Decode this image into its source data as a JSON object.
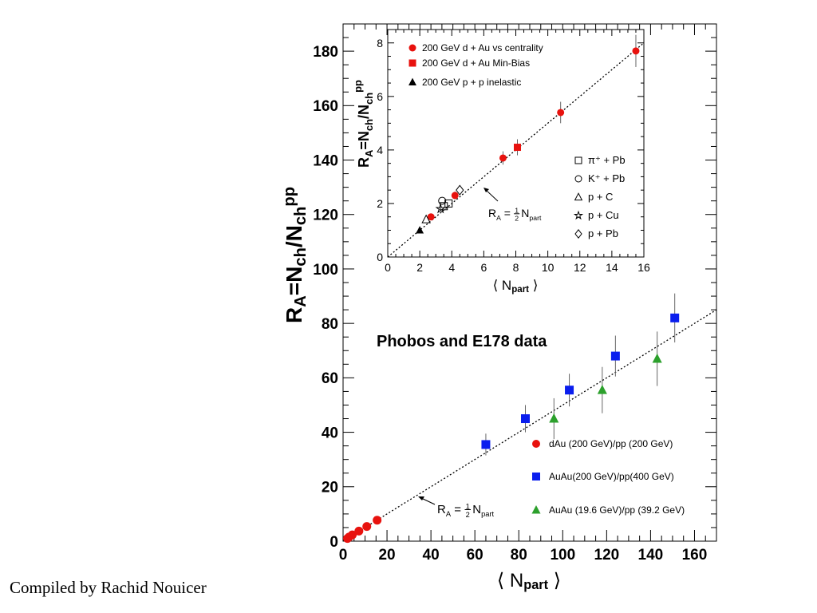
{
  "credit": "Compiled by Rachid Nouicer",
  "colors": {
    "red": "#e8120e",
    "blue": "#0a1eee",
    "green": "#2ca02c",
    "black": "#000000"
  },
  "chart_data": [
    {
      "id": "main",
      "type": "scatter",
      "title": "Phobos and E178 data",
      "ylabel": "R_A=N_ch/N_ch^pp",
      "xlabel": "⟨ N_part ⟩",
      "xlim": [
        0,
        170
      ],
      "ylim": [
        0,
        190
      ],
      "xticks": [
        0,
        20,
        40,
        60,
        80,
        100,
        120,
        140,
        160
      ],
      "yticks": [
        0,
        20,
        40,
        60,
        80,
        100,
        120,
        140,
        160,
        180
      ],
      "grid": false,
      "legend": "bottom-right",
      "fit_line": {
        "label": "R_A = 1/2 N_part",
        "slope": 0.5
      },
      "series": [
        {
          "name": "dAu (200 GeV)/pp (200 GeV)",
          "marker": "circle",
          "color": "#e8120e",
          "points": [
            {
              "x": 2.0,
              "y": 1.0,
              "err": 0
            },
            {
              "x": 2.7,
              "y": 1.5,
              "err": 0
            },
            {
              "x": 4.2,
              "y": 2.3,
              "err": 0
            },
            {
              "x": 7.2,
              "y": 3.7,
              "err": 0
            },
            {
              "x": 10.8,
              "y": 5.4,
              "err": 0
            },
            {
              "x": 15.5,
              "y": 7.7,
              "err": 0
            }
          ]
        },
        {
          "name": "AuAu(200 GeV)/pp(400 GeV)",
          "marker": "square",
          "color": "#0a1eee",
          "points": [
            {
              "x": 65,
              "y": 35.5,
              "err": 4
            },
            {
              "x": 83,
              "y": 45,
              "err": 5
            },
            {
              "x": 103,
              "y": 55.5,
              "err": 6
            },
            {
              "x": 124,
              "y": 68,
              "err": 7.5
            },
            {
              "x": 151,
              "y": 82,
              "err": 9
            }
          ]
        },
        {
          "name": "AuAu (19.6 GeV)/pp (39.2 GeV)",
          "marker": "triangle",
          "color": "#2ca02c",
          "points": [
            {
              "x": 96,
              "y": 45,
              "err": 7.5
            },
            {
              "x": 118,
              "y": 55.5,
              "err": 8.5
            },
            {
              "x": 143,
              "y": 67,
              "err": 10
            }
          ]
        }
      ]
    },
    {
      "id": "inset",
      "type": "scatter",
      "ylabel": "R_A=N_ch/N_ch^pp",
      "xlabel": "⟨ N_part ⟩",
      "xlim": [
        0,
        16
      ],
      "ylim": [
        0,
        8.5
      ],
      "xticks": [
        0,
        2,
        4,
        6,
        8,
        10,
        12,
        14,
        16
      ],
      "yticks": [
        0,
        2,
        4,
        6,
        8
      ],
      "grid": false,
      "fit_line": {
        "label": "R_A = 1/2 N_part",
        "slope": 0.5
      },
      "series": [
        {
          "name": "200 GeV d + Au vs centrality",
          "marker": "circle",
          "color": "#e8120e",
          "points": [
            {
              "x": 2.7,
              "y": 1.5,
              "err": 0.1
            },
            {
              "x": 4.2,
              "y": 2.3,
              "err": 0.15
            },
            {
              "x": 7.2,
              "y": 3.7,
              "err": 0.25
            },
            {
              "x": 10.8,
              "y": 5.4,
              "err": 0.4
            },
            {
              "x": 15.5,
              "y": 7.7,
              "err": 0.6
            }
          ]
        },
        {
          "name": "200 GeV d + Au  Min-Bias",
          "marker": "square",
          "color": "#e8120e",
          "points": [
            {
              "x": 8.1,
              "y": 4.1,
              "err": 0.3
            }
          ]
        },
        {
          "name": "200 GeV p + p inelastic",
          "marker": "triangle",
          "color": "#000000",
          "points": [
            {
              "x": 2.0,
              "y": 1.0,
              "err": 0
            }
          ]
        },
        {
          "name": "π⁺ + Pb",
          "marker": "open-square",
          "color": "#000000",
          "points": [
            {
              "x": 3.5,
              "y": 1.9,
              "err": 0
            },
            {
              "x": 3.8,
              "y": 2.0,
              "err": 0
            }
          ]
        },
        {
          "name": "K⁺ + Pb",
          "marker": "open-circle",
          "color": "#000000",
          "points": [
            {
              "x": 3.4,
              "y": 2.1,
              "err": 0
            }
          ]
        },
        {
          "name": "p + C",
          "marker": "open-triangle",
          "color": "#000000",
          "points": [
            {
              "x": 2.4,
              "y": 1.4,
              "err": 0
            }
          ]
        },
        {
          "name": "p + Cu",
          "marker": "open-star",
          "color": "#000000",
          "points": [
            {
              "x": 3.3,
              "y": 1.8,
              "err": 0
            }
          ]
        },
        {
          "name": "p + Pb",
          "marker": "open-diamond",
          "color": "#000000",
          "points": [
            {
              "x": 4.5,
              "y": 2.5,
              "err": 0
            }
          ]
        }
      ]
    }
  ]
}
